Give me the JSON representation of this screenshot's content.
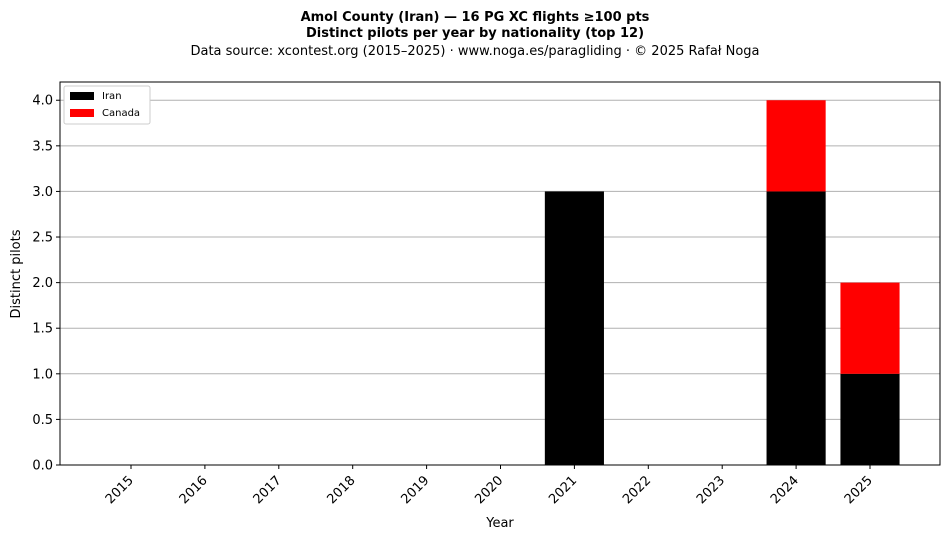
{
  "chart_data": {
    "type": "bar",
    "stacked": true,
    "title_lines": [
      "Amol County (Iran)  —  16 PG XC flights ≥100 pts",
      "Distinct pilots per year by nationality (top 12)"
    ],
    "subtitle": "Data source: xcontest.org (2015–2025)  ·  www.noga.es/paragliding  ·  © 2025 Rafał Noga",
    "xlabel": "Year",
    "ylabel": "Distinct pilots",
    "categories": [
      "2015",
      "2016",
      "2017",
      "2018",
      "2019",
      "2020",
      "2021",
      "2022",
      "2023",
      "2024",
      "2025"
    ],
    "series": [
      {
        "name": "Iran",
        "color": "#000000",
        "values": [
          0,
          0,
          0,
          0,
          0,
          0,
          3,
          0,
          0,
          3,
          1
        ]
      },
      {
        "name": "Canada",
        "color": "#ff0000",
        "values": [
          0,
          0,
          0,
          0,
          0,
          0,
          0,
          0,
          0,
          1,
          1
        ]
      }
    ],
    "ylim": [
      0,
      4.2
    ],
    "yticks": [
      "0.0",
      "0.5",
      "1.0",
      "1.5",
      "2.0",
      "2.5",
      "3.0",
      "3.5",
      "4.0"
    ],
    "grid": "y",
    "legend_position": "top-left"
  }
}
